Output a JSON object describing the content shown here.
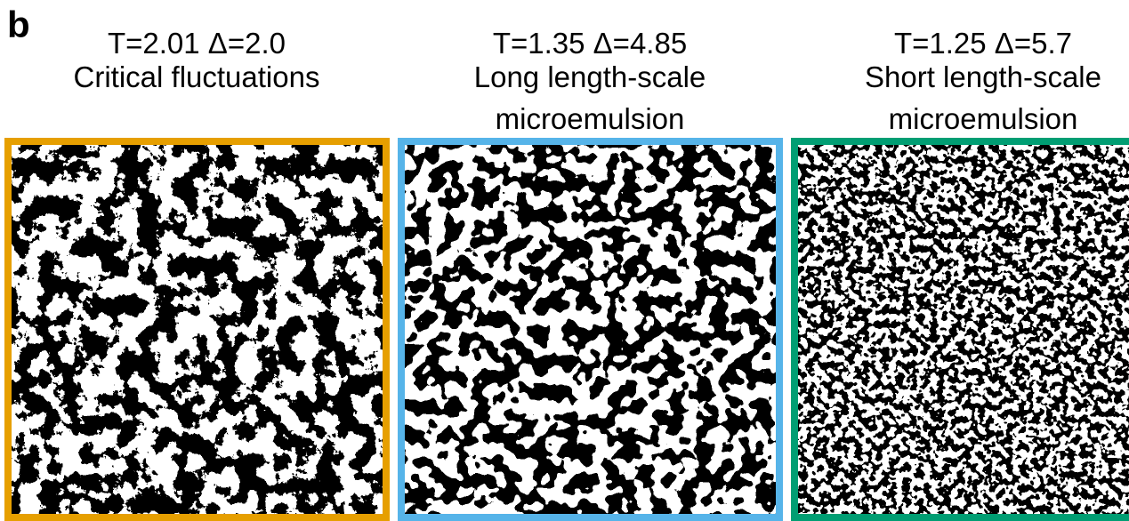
{
  "panel_label": "b",
  "panels": [
    {
      "lines": [
        "T=2.01 Δ=2.0",
        "Critical fluctuations"
      ]
    },
    {
      "lines": [
        "T=1.35 Δ=4.85",
        "Long length-scale",
        "microemulsion"
      ]
    },
    {
      "lines": [
        "T=1.25 Δ=5.7",
        "Short length-scale",
        "microemulsion"
      ]
    }
  ]
}
